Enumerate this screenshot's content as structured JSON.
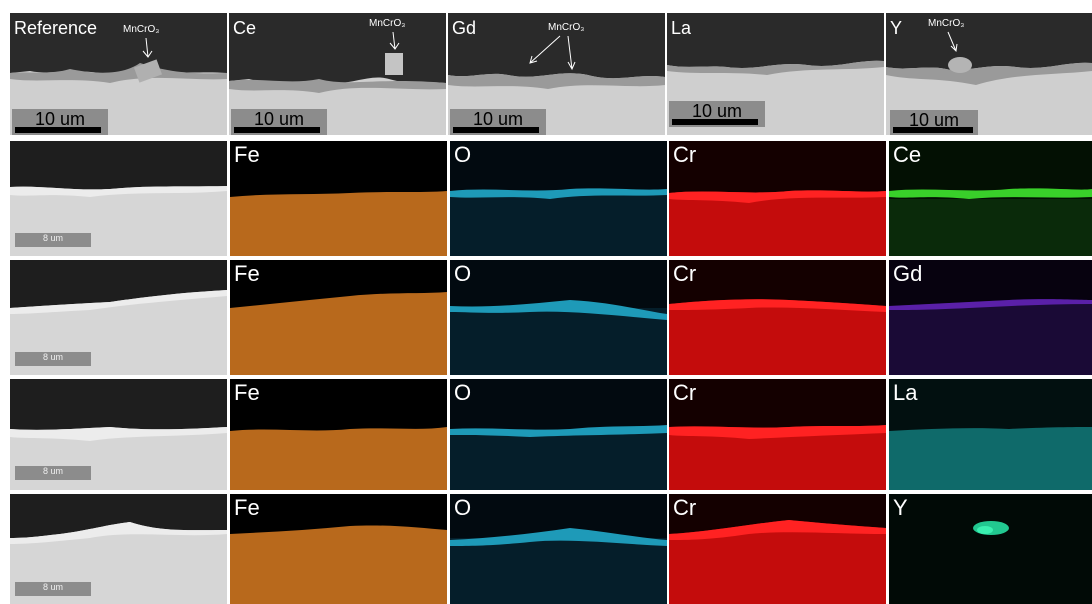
{
  "top_row": [
    {
      "label": "Reference",
      "annotation": "MnCrO₃",
      "scale": "10 um"
    },
    {
      "label": "Ce",
      "annotation": "MnCrO₃",
      "scale": "10 um"
    },
    {
      "label": "Gd",
      "annotation": "MnCrO₃",
      "scale": "10 um"
    },
    {
      "label": "La",
      "annotation": "",
      "scale": "10 um"
    },
    {
      "label": "Y",
      "annotation": "MnCrO₃",
      "scale": "10 um"
    }
  ],
  "map_rows": [
    {
      "scale": "8 um",
      "maps": [
        "Fe",
        "O",
        "Cr",
        "Ce"
      ]
    },
    {
      "scale": "8 um",
      "maps": [
        "Fe",
        "O",
        "Cr",
        "Gd"
      ]
    },
    {
      "scale": "8 um",
      "maps": [
        "Fe",
        "O",
        "Cr",
        "La"
      ]
    },
    {
      "scale": "8 um",
      "maps": [
        "Fe",
        "O",
        "Cr",
        "Y"
      ]
    }
  ],
  "colors": {
    "Fe": "#b8691c",
    "O": "#1e9ab8",
    "Cr": "#d40f0f",
    "Ce": "#39d02a",
    "Gd": "#5a20a8",
    "La": "#1aa0a0",
    "Y": "#22c890",
    "sem_dark": "#2a2a2a",
    "sem_light": "#d8d8d8"
  }
}
